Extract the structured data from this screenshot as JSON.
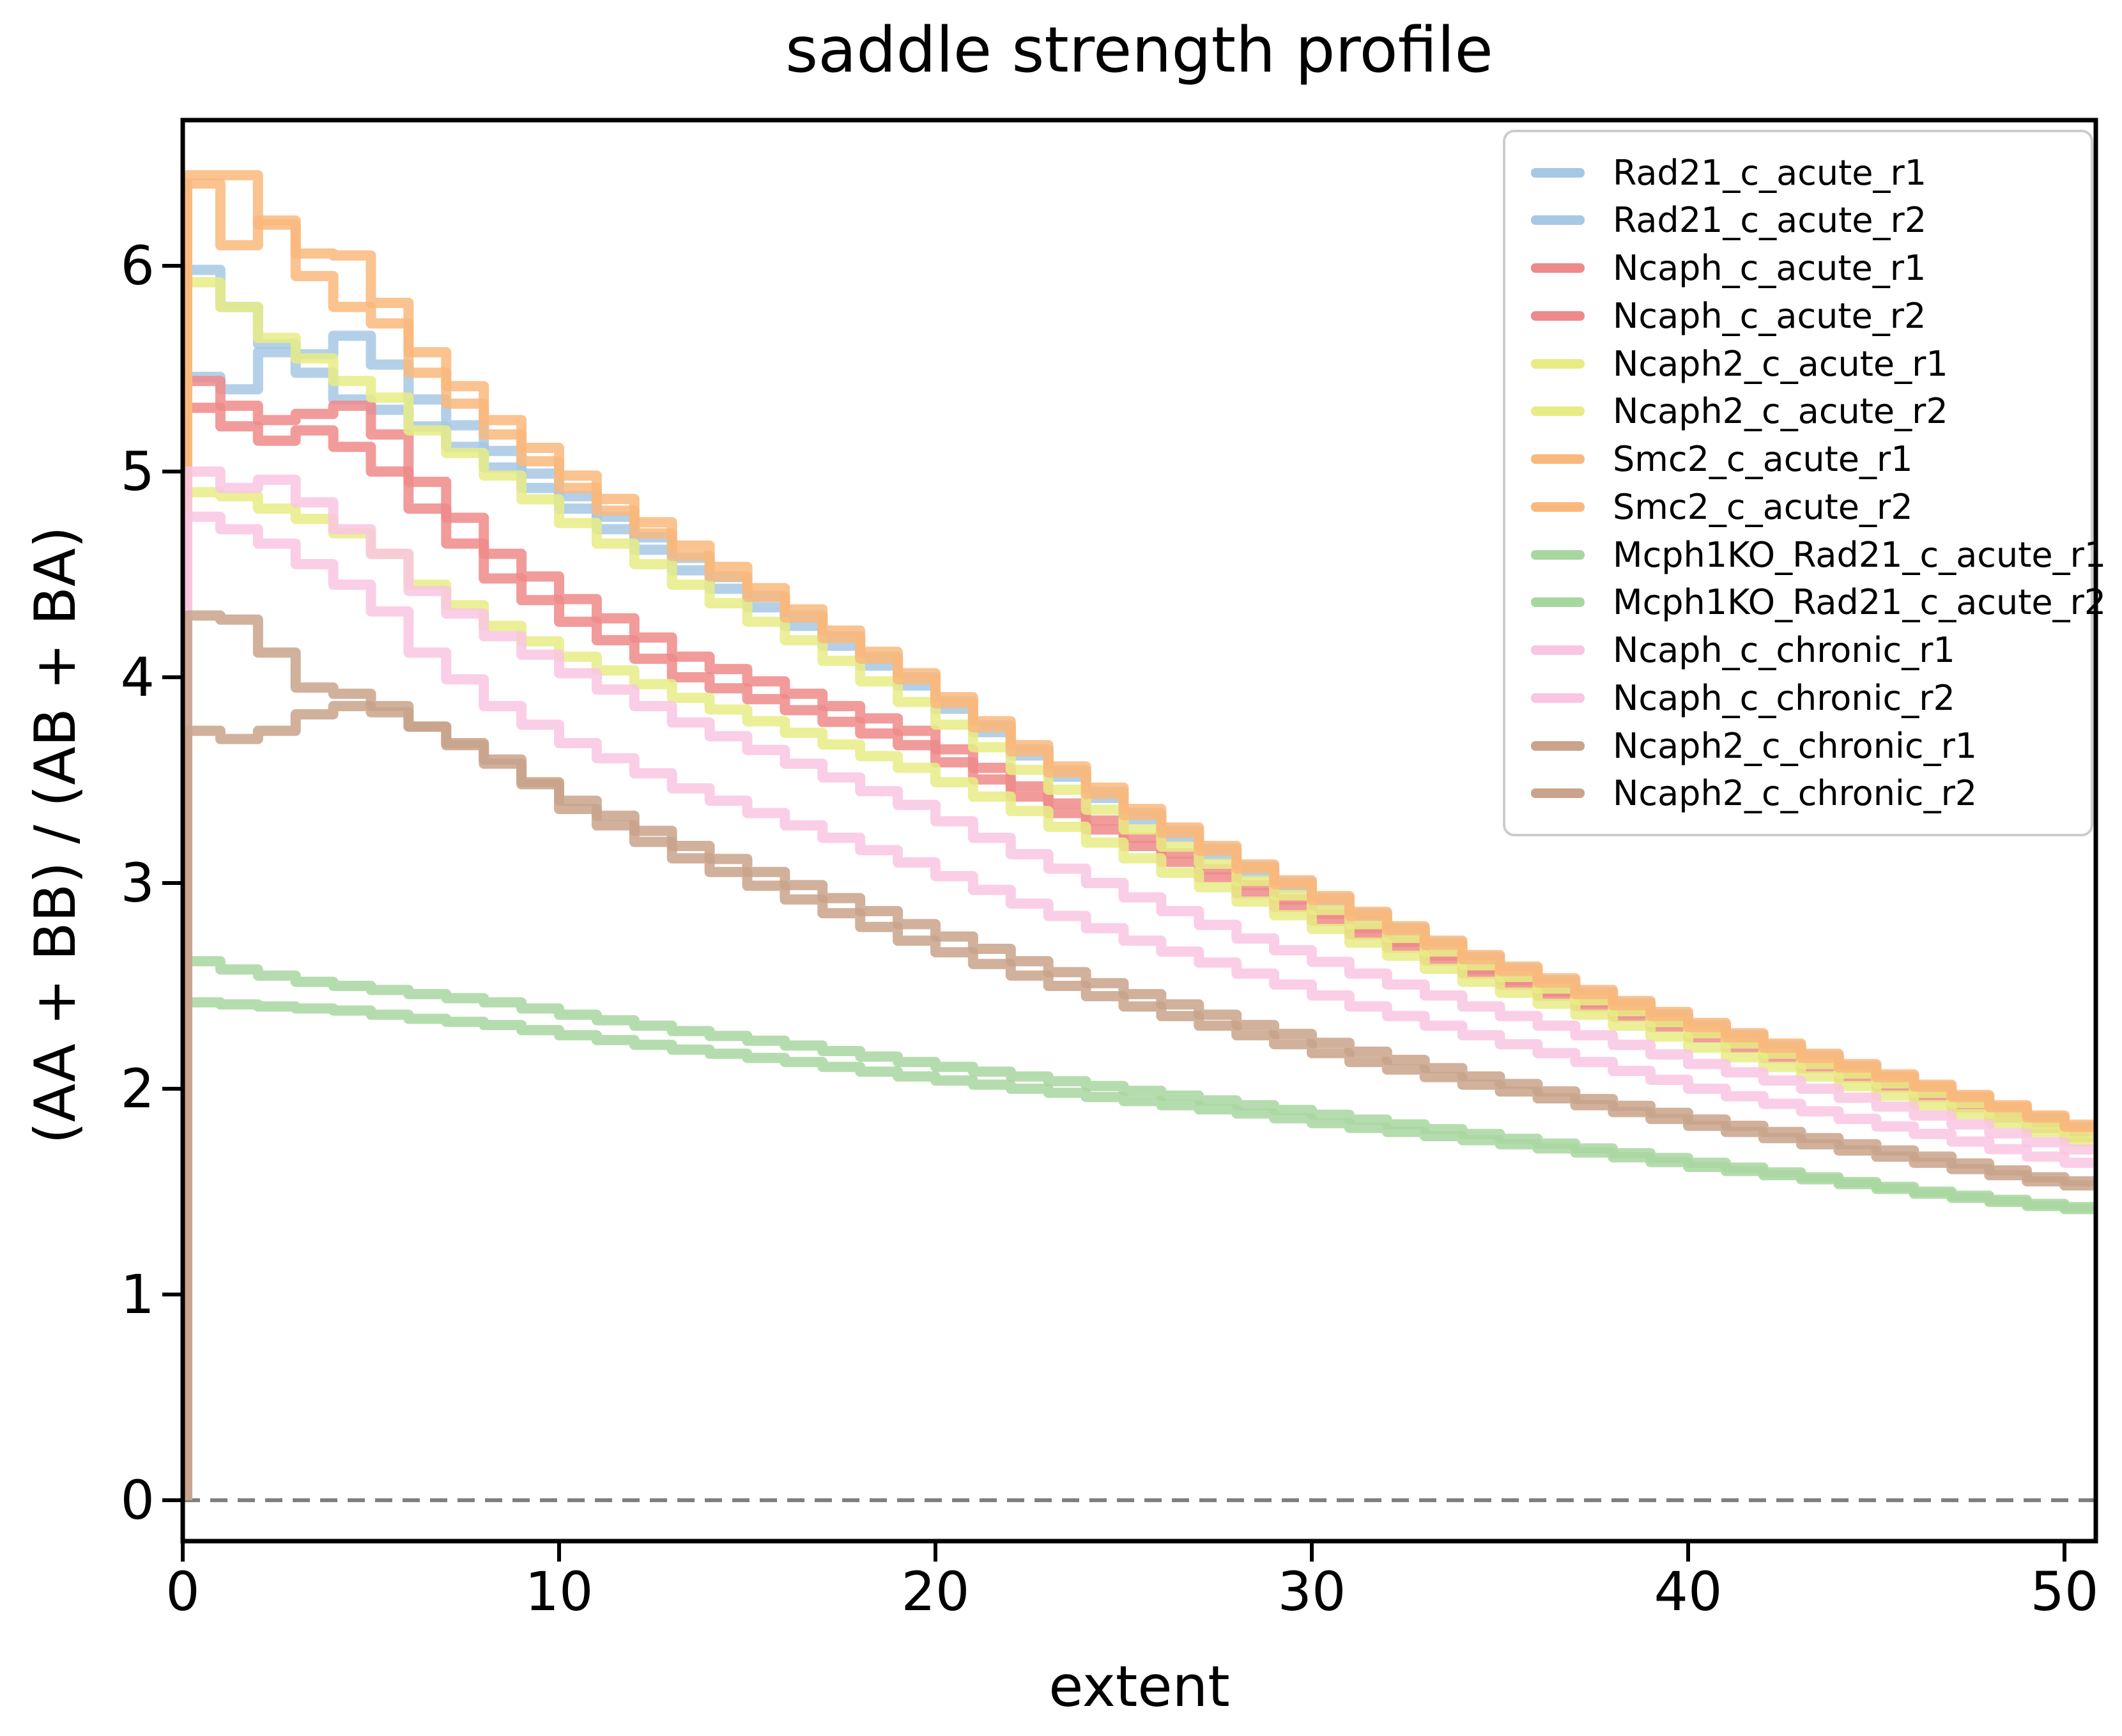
{
  "chart": {
    "title": "saddle strength profile",
    "x_axis": {
      "label": "extent",
      "ticks": [
        0,
        10,
        20,
        30,
        40,
        50
      ],
      "range": [
        0,
        50.83
      ]
    },
    "y_axis": {
      "label": "(AA + BB) / (AB + BA)",
      "ticks": [
        0,
        1,
        2,
        3,
        4,
        5,
        6
      ],
      "range": [
        -0.2,
        6.71
      ]
    },
    "zero_line": {
      "value": 0,
      "color": "#7f7f7f",
      "style": "dashed"
    },
    "legend_position": "upper right",
    "grid": false
  },
  "chart_data": {
    "type": "line",
    "step_style": "steps-post",
    "line_opacity": 0.85,
    "x_anchors": [
      0,
      1,
      2,
      3,
      4,
      5,
      6,
      8,
      10,
      13,
      16,
      19,
      22,
      25,
      28,
      31,
      34,
      37,
      40,
      43,
      46,
      49,
      51
    ],
    "series": [
      {
        "name": "Rad21_c_acute_r1",
        "color": "#a6c8e4",
        "values": [
          5.98,
          5.8,
          5.62,
          5.57,
          5.66,
          5.52,
          5.35,
          5.1,
          4.88,
          4.58,
          4.3,
          4.0,
          3.65,
          3.34,
          3.08,
          2.85,
          2.64,
          2.47,
          2.31,
          2.16,
          2.01,
          1.86,
          1.77
        ]
      },
      {
        "name": "Rad21_c_acute_r2",
        "color": "#a6c8e4",
        "values": [
          5.46,
          5.4,
          5.58,
          5.48,
          5.35,
          5.3,
          5.22,
          5.02,
          4.82,
          4.52,
          4.25,
          3.96,
          3.62,
          3.31,
          3.05,
          2.83,
          2.62,
          2.45,
          2.29,
          2.14,
          2.0,
          1.85,
          1.76
        ]
      },
      {
        "name": "Ncaph_c_acute_r1",
        "color": "#ee8a8a",
        "values": [
          5.44,
          5.32,
          5.25,
          5.28,
          5.32,
          5.18,
          4.95,
          4.6,
          4.38,
          4.1,
          3.92,
          3.74,
          3.47,
          3.22,
          2.99,
          2.78,
          2.58,
          2.42,
          2.27,
          2.12,
          1.98,
          1.83,
          1.74
        ]
      },
      {
        "name": "Ncaph_c_acute_r2",
        "color": "#ee8a8a",
        "values": [
          5.31,
          5.22,
          5.15,
          5.2,
          5.12,
          5.0,
          4.82,
          4.48,
          4.27,
          4.0,
          3.84,
          3.67,
          3.42,
          3.18,
          2.95,
          2.75,
          2.56,
          2.4,
          2.25,
          2.1,
          1.96,
          1.81,
          1.72
        ]
      },
      {
        "name": "Ncaph2_c_acute_r1",
        "color": "#e8ec85",
        "values": [
          5.92,
          5.8,
          5.65,
          5.55,
          5.44,
          5.36,
          5.2,
          4.98,
          4.75,
          4.45,
          4.18,
          3.88,
          3.55,
          3.26,
          3.01,
          2.8,
          2.6,
          2.43,
          2.27,
          2.12,
          1.98,
          1.83,
          1.74
        ]
      },
      {
        "name": "Ncaph2_c_acute_r2",
        "color": "#e8ec85",
        "values": [
          4.9,
          4.88,
          4.82,
          4.77,
          4.7,
          4.6,
          4.45,
          4.25,
          4.1,
          3.9,
          3.73,
          3.56,
          3.35,
          3.12,
          2.91,
          2.71,
          2.52,
          2.36,
          2.2,
          2.06,
          1.92,
          1.79,
          1.7
        ]
      },
      {
        "name": "Smc2_c_acute_r1",
        "color": "#f9b97d",
        "values": [
          6.44,
          6.44,
          6.2,
          6.06,
          6.05,
          5.82,
          5.58,
          5.25,
          4.98,
          4.64,
          4.33,
          4.02,
          3.67,
          3.36,
          3.09,
          2.86,
          2.65,
          2.48,
          2.32,
          2.17,
          2.02,
          1.87,
          1.78
        ]
      },
      {
        "name": "Smc2_c_acute_r2",
        "color": "#f9b97d",
        "values": [
          6.4,
          6.1,
          6.22,
          5.95,
          5.8,
          5.72,
          5.48,
          5.18,
          4.92,
          4.59,
          4.29,
          3.99,
          3.64,
          3.33,
          3.07,
          2.84,
          2.63,
          2.46,
          2.3,
          2.15,
          2.01,
          1.86,
          1.77
        ]
      },
      {
        "name": "Mcph1KO_Rad21_c_acute_r1",
        "color": "#a8d6a0",
        "values": [
          2.62,
          2.58,
          2.55,
          2.52,
          2.5,
          2.48,
          2.46,
          2.42,
          2.36,
          2.28,
          2.21,
          2.13,
          2.06,
          1.99,
          1.92,
          1.85,
          1.78,
          1.71,
          1.64,
          1.57,
          1.5,
          1.44,
          1.41
        ]
      },
      {
        "name": "Mcph1KO_Rad21_c_acute_r2",
        "color": "#a8d6a0",
        "values": [
          2.42,
          2.41,
          2.4,
          2.39,
          2.38,
          2.36,
          2.34,
          2.31,
          2.26,
          2.19,
          2.13,
          2.06,
          2.0,
          1.94,
          1.88,
          1.81,
          1.75,
          1.69,
          1.62,
          1.56,
          1.49,
          1.43,
          1.4
        ]
      },
      {
        "name": "Ncaph_c_chronic_r1",
        "color": "#f9c5e2",
        "values": [
          5.0,
          4.92,
          4.96,
          4.85,
          4.72,
          4.6,
          4.42,
          4.2,
          4.02,
          3.78,
          3.58,
          3.38,
          3.14,
          2.93,
          2.73,
          2.56,
          2.4,
          2.26,
          2.12,
          2.0,
          1.87,
          1.74,
          1.67
        ]
      },
      {
        "name": "Ncaph_c_chronic_r2",
        "color": "#f9c5e2",
        "values": [
          4.78,
          4.72,
          4.65,
          4.55,
          4.45,
          4.32,
          4.12,
          3.86,
          3.68,
          3.46,
          3.28,
          3.1,
          2.9,
          2.72,
          2.56,
          2.4,
          2.26,
          2.13,
          2.0,
          1.89,
          1.78,
          1.67,
          1.61
        ]
      },
      {
        "name": "Ncaph2_c_chronic_r1",
        "color": "#c9a38b",
        "values": [
          4.3,
          4.28,
          4.12,
          3.95,
          3.92,
          3.86,
          3.76,
          3.58,
          3.4,
          3.18,
          2.99,
          2.8,
          2.62,
          2.46,
          2.31,
          2.18,
          2.06,
          1.95,
          1.85,
          1.76,
          1.67,
          1.57,
          1.53
        ]
      },
      {
        "name": "Ncaph2_c_chronic_r2",
        "color": "#c9a38b",
        "values": [
          3.74,
          3.7,
          3.74,
          3.82,
          3.86,
          3.83,
          3.76,
          3.6,
          3.36,
          3.12,
          2.92,
          2.72,
          2.55,
          2.4,
          2.26,
          2.13,
          2.02,
          1.92,
          1.82,
          1.73,
          1.64,
          1.55,
          1.51
        ]
      }
    ]
  }
}
